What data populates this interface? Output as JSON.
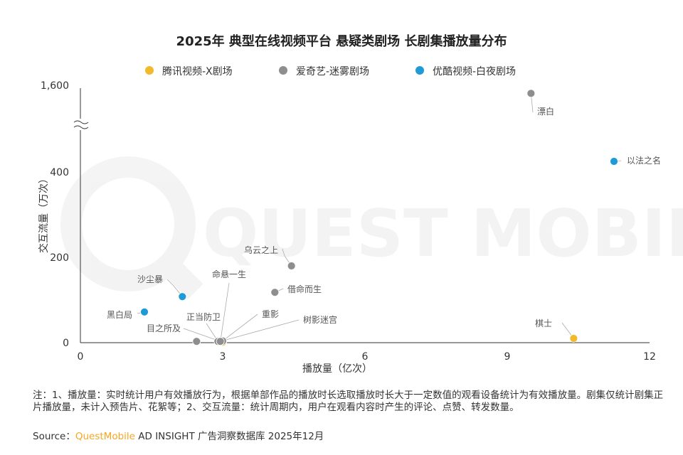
{
  "chart_data": {
    "type": "scatter",
    "title": "2025年 典型在线视频平台 悬疑类剧场 长剧集播放量分布",
    "xlabel": "播放量（亿次）",
    "ylabel": "交互流量（万次）",
    "xlim": [
      0,
      12
    ],
    "x_ticks": [
      "0",
      "3",
      "6",
      "9",
      "12"
    ],
    "y_ticks": [
      "0",
      "200",
      "400",
      "1,600"
    ],
    "y_axis_break": "between 400 and 1,600",
    "grid": false,
    "legend_position": "top",
    "series": [
      {
        "name": "腾讯视频-X剧场",
        "color": "#f2b92b",
        "points": [
          {
            "label": "棋士",
            "x": 10.4,
            "y": 10
          },
          {
            "label": "目之所及",
            "x": 3.0,
            "y": 1
          }
        ]
      },
      {
        "name": "爱奇艺-迷雾剧场",
        "color": "#8e8e8e",
        "points": [
          {
            "label": "漂白",
            "x": 9.5,
            "y": 1450
          },
          {
            "label": "乌云之上",
            "x": 4.45,
            "y": 180
          },
          {
            "label": "借命而生",
            "x": 4.1,
            "y": 118
          },
          {
            "label": "命悬一生",
            "x": 2.95,
            "y": 2
          },
          {
            "label": "正当防卫",
            "x": 2.9,
            "y": 3
          },
          {
            "label": "重影",
            "x": 3.0,
            "y": 4
          },
          {
            "label": "树影迷宫",
            "x": 2.95,
            "y": 3
          },
          {
            "label": "",
            "x": 2.45,
            "y": 3
          }
        ]
      },
      {
        "name": "优酷视频-白夜剧场",
        "color": "#1f9ad6",
        "points": [
          {
            "label": "以法之名",
            "x": 11.25,
            "y": 425
          },
          {
            "label": "沙尘暴",
            "x": 2.15,
            "y": 108
          },
          {
            "label": "黑白局",
            "x": 1.35,
            "y": 72
          }
        ]
      }
    ]
  },
  "note_text": "注：1、播放量：实时统计用户有效播放行为，根据单部作品的播放时长选取播放时长大于一定数值的观看设备统计为有效播放量。剧集仅统计剧集正片播放量，未计入预告片、花絮等；2、交互流量：统计周期内，用户在观看内容时产生的评论、点赞、转发数量。",
  "source": {
    "prefix": "Source：",
    "brand": "QuestMobile",
    "rest": " AD INSIGHT 广告洞察数据库 2025年12月"
  },
  "watermark": "QUEST MOBILE"
}
